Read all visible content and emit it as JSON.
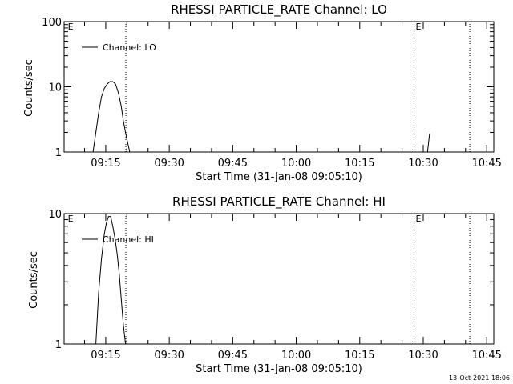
{
  "timestamp": "13-Oct-2021 18:06",
  "chart_data": [
    {
      "type": "line",
      "title": "RHESSI PARTICLE_RATE Channel: LO",
      "xlabel": "Start Time (31-Jan-08 09:05:10)",
      "ylabel": "Counts/sec",
      "y_scale": "log",
      "ylim": [
        1,
        100
      ],
      "ytick_labels": [
        "1",
        "10",
        "100"
      ],
      "ytick_values": [
        1,
        10,
        100
      ],
      "xlim": [
        "09:05:10",
        "10:46:40"
      ],
      "xtick_labels": [
        "09:15",
        "09:30",
        "09:45",
        "10:00",
        "10:15",
        "10:30",
        "10:45"
      ],
      "grid": false,
      "legend_position": "top-left",
      "series": [
        {
          "name": "Channel: LO",
          "x": [
            "09:12:00",
            "09:12:40",
            "09:13:20",
            "09:14:00",
            "09:14:40",
            "09:15:20",
            "09:16:00",
            "09:16:40",
            "09:17:20",
            "09:18:00",
            "09:18:40",
            "09:19:10",
            "09:19:40",
            "09:20:10",
            "09:20:40"
          ],
          "y": [
            1.0,
            2.0,
            4.0,
            7.0,
            9.5,
            11.0,
            12.0,
            12.0,
            11.0,
            8.0,
            5.0,
            3.0,
            2.0,
            1.4,
            1.0
          ]
        },
        {
          "name": "",
          "x": [
            "10:31:00",
            "10:31:30"
          ],
          "y": [
            1.0,
            1.9
          ]
        }
      ],
      "vertical_markers": [
        {
          "time": "09:19:45",
          "label": ""
        },
        {
          "time": "09:05:40",
          "label": "E"
        },
        {
          "time": "10:27:50",
          "label": "E"
        },
        {
          "time": "10:41:00",
          "label": ""
        }
      ]
    },
    {
      "type": "line",
      "title": "RHESSI PARTICLE_RATE Channel: HI",
      "xlabel": "Start Time (31-Jan-08 09:05:10)",
      "ylabel": "Counts/sec",
      "y_scale": "log",
      "ylim": [
        1,
        10
      ],
      "ytick_labels": [
        "1",
        "10"
      ],
      "ytick_values": [
        1,
        10
      ],
      "xlim": [
        "09:05:10",
        "10:46:40"
      ],
      "xtick_labels": [
        "09:15",
        "09:30",
        "09:45",
        "10:00",
        "10:15",
        "10:30",
        "10:45"
      ],
      "grid": false,
      "legend_position": "top-left",
      "series": [
        {
          "name": "Channel: HI",
          "x": [
            "09:12:40",
            "09:13:20",
            "09:14:00",
            "09:14:40",
            "09:15:10",
            "09:15:40",
            "09:16:10",
            "09:16:40",
            "09:17:10",
            "09:17:40",
            "09:18:10",
            "09:18:40",
            "09:19:10",
            "09:19:40"
          ],
          "y": [
            1.0,
            2.5,
            4.5,
            7.0,
            8.5,
            9.5,
            9.5,
            8.0,
            6.5,
            5.0,
            3.5,
            2.2,
            1.4,
            1.0
          ]
        }
      ],
      "vertical_markers": [
        {
          "time": "09:19:45",
          "label": ""
        },
        {
          "time": "09:05:40",
          "label": "E"
        },
        {
          "time": "10:27:50",
          "label": "E"
        },
        {
          "time": "10:41:00",
          "label": ""
        }
      ]
    }
  ]
}
